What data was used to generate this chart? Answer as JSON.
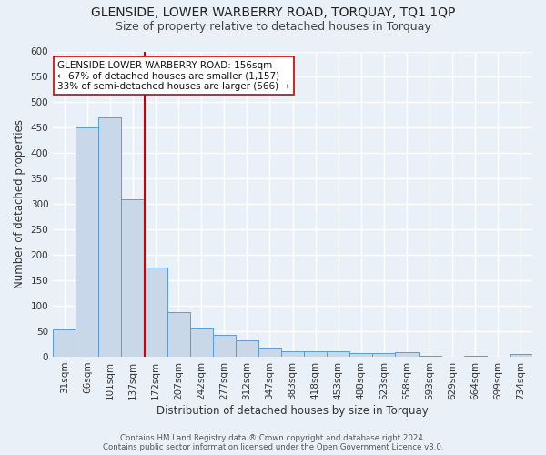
{
  "title1": "GLENSIDE, LOWER WARBERRY ROAD, TORQUAY, TQ1 1QP",
  "title2": "Size of property relative to detached houses in Torquay",
  "xlabel": "Distribution of detached houses by size in Torquay",
  "ylabel": "Number of detached properties",
  "footer1": "Contains HM Land Registry data ® Crown copyright and database right 2024.",
  "footer2": "Contains public sector information licensed under the Open Government Licence v3.0.",
  "bar_labels": [
    "31sqm",
    "66sqm",
    "101sqm",
    "137sqm",
    "172sqm",
    "207sqm",
    "242sqm",
    "277sqm",
    "312sqm",
    "347sqm",
    "383sqm",
    "418sqm",
    "453sqm",
    "488sqm",
    "523sqm",
    "558sqm",
    "593sqm",
    "629sqm",
    "664sqm",
    "699sqm",
    "734sqm"
  ],
  "bar_values": [
    53,
    450,
    470,
    310,
    175,
    88,
    57,
    43,
    32,
    17,
    10,
    10,
    10,
    7,
    7,
    8,
    2,
    0,
    2,
    0,
    5
  ],
  "bar_color": "#c8d8e8",
  "bar_edge_color": "#5b9bd5",
  "vline_x": 3.5,
  "vline_color": "#cc0000",
  "annotation_text": "GLENSIDE LOWER WARBERRY ROAD: 156sqm\n← 67% of detached houses are smaller (1,157)\n33% of semi-detached houses are larger (566) →",
  "annotation_box_color": "#ffffff",
  "annotation_box_edge": "#cc0000",
  "ylim": [
    0,
    600
  ],
  "yticks": [
    0,
    50,
    100,
    150,
    200,
    250,
    300,
    350,
    400,
    450,
    500,
    550,
    600
  ],
  "bg_color": "#eaf0f8",
  "plot_bg_color": "#eaf0f8",
  "grid_color": "#ffffff",
  "title1_fontsize": 10,
  "title2_fontsize": 9,
  "axis_label_fontsize": 8.5,
  "tick_fontsize": 7.5,
  "annotation_fontsize": 7.5
}
